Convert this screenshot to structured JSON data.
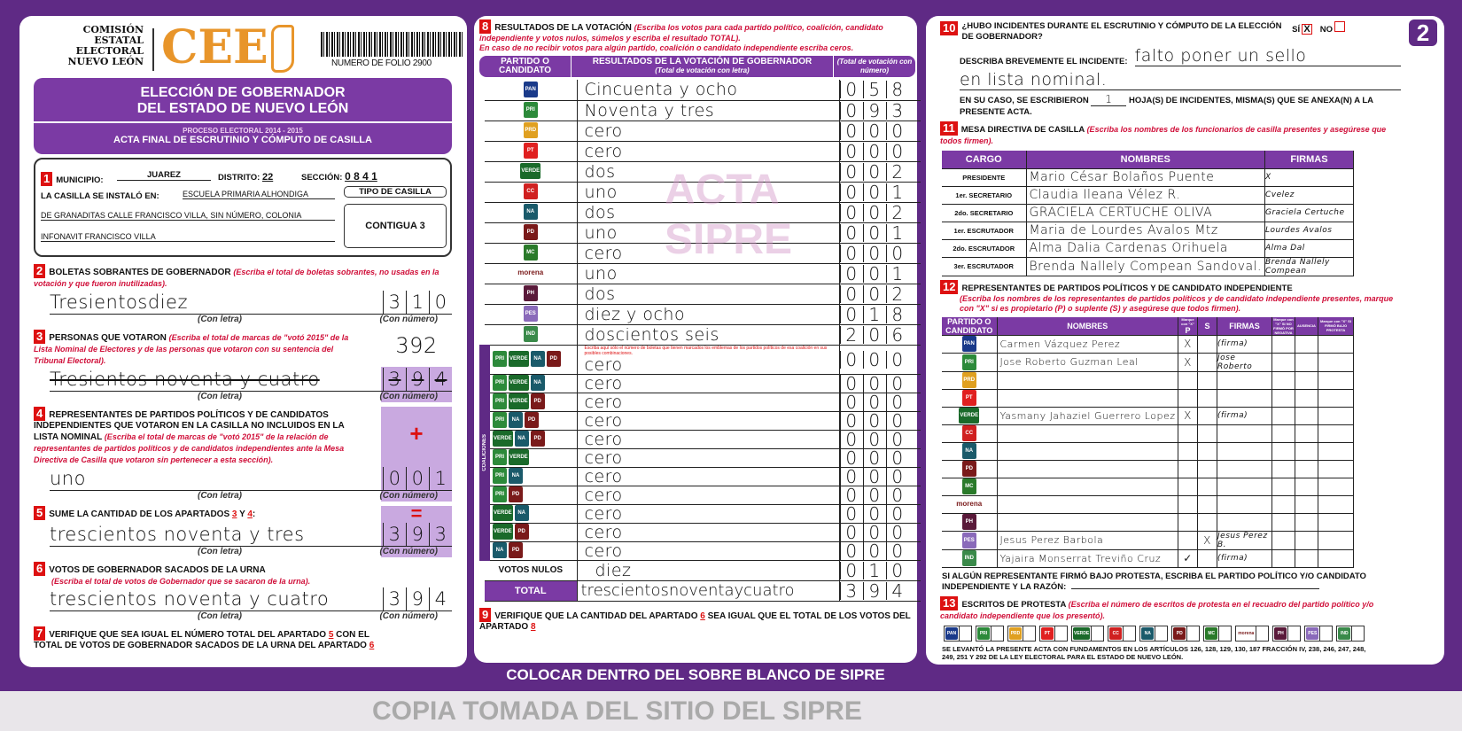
{
  "header": {
    "org_lines": [
      "COMISIÓN",
      "ESTATAL",
      "ELECTORAL",
      "NUEVO LEÓN"
    ],
    "logo_text": "CEE",
    "folio": "NUMERO DE FOLIO 2900",
    "title1": "ELECCIÓN DE GOBERNADOR",
    "title2": "DEL ESTADO DE NUEVO LEÓN",
    "proceso": "PROCESO ELECTORAL 2014 - 2015",
    "acta": "ACTA FINAL DE ESCRUTINIO Y CÓMPUTO DE CASILLA"
  },
  "s1": {
    "n": "1",
    "municipio_label": "MUNICIPIO:",
    "municipio": "JUAREZ",
    "distrito_label": "DISTRITO:",
    "distrito": "22",
    "seccion_label": "SECCIÓN:",
    "seccion": "0 8 4 1",
    "instalo_label": "LA CASILLA SE INSTALÓ EN:",
    "addr1": "ESCUELA PRIMARIA ALHONDIGA",
    "addr2": "DE GRANADITAS CALLE FRANCISCO VILLA, SIN NÚMERO, COLONIA",
    "addr3": "INFONAVIT FRANCISCO VILLA",
    "tipo_label": "TIPO DE CASILLA",
    "tipo": "CONTIGUA 3"
  },
  "labels": {
    "con_letra": "(Con letra)",
    "con_numero": "(Con número)",
    "plus": "+",
    "equals": "="
  },
  "s2": {
    "n": "2",
    "title": "BOLETAS SOBRANTES DE GOBERNADOR",
    "hint": "(Escriba el total de boletas sobrantes, no usadas en la votación y que fueron inutilizadas).",
    "letra": "Tresientosdiez",
    "numero": [
      "3",
      "1",
      "0"
    ]
  },
  "s3": {
    "n": "3",
    "title": "PERSONAS QUE VOTARON",
    "hint": "(Escriba el total de marcas de \"votó 2015\" de la Lista Nominal de Electores y de las personas que votaron con su sentencia del Tribunal Electoral).",
    "letra": "Tresientos noventa y cuatro",
    "numero_corrected": "392",
    "numero": [
      "3",
      "9",
      "4"
    ]
  },
  "s4": {
    "n": "4",
    "title": "REPRESENTANTES DE PARTIDOS POLÍTICOS Y DE CANDIDATOS INDEPENDIENTES QUE VOTARON EN LA CASILLA NO INCLUIDOS EN LA LISTA NOMINAL",
    "hint": "(Escriba el total de marcas de \"votó 2015\" de la relación de representantes de partidos políticos y de candidatos independientes ante la Mesa Directiva de Casilla que votaron sin pertenecer a esta sección).",
    "letra": "uno",
    "numero": [
      "0",
      "0",
      "1"
    ]
  },
  "s5": {
    "n": "5",
    "title": "SUME LA CANTIDAD DE LOS APARTADOS",
    "a": "3",
    "y": "Y",
    "b": "4",
    "colon": ":",
    "letra": "trescientos noventa y tres",
    "numero": [
      "3",
      "9",
      "3"
    ]
  },
  "s6": {
    "n": "6",
    "title": "VOTOS DE GOBERNADOR SACADOS DE LA URNA",
    "hint": "(Escriba el total de votos de Gobernador que se sacaron de la urna).",
    "letra": "trescientos noventa y cuatro",
    "numero": [
      "3",
      "9",
      "4"
    ]
  },
  "s7": {
    "n": "7",
    "text1": "VERIFIQUE QUE SEA IGUAL EL NÚMERO TOTAL DEL APARTADO",
    "ref1": "5",
    "text2": "CON EL TOTAL DE VOTOS DE GOBERNADOR SACADOS DE LA URNA DEL APARTADO",
    "ref2": "6"
  },
  "s8": {
    "n": "8",
    "title": "RESULTADOS DE LA VOTACIÓN",
    "hint1": "(Escriba los votos para cada partido político, coalición, candidato independiente y votos nulos, súmelos y escriba el resultado TOTAL).",
    "hint2": "En caso de no recibir votos para algún partido, coalición o candidato independiente escriba ceros.",
    "col1": "PARTIDO O CANDIDATO",
    "col2": "RESULTADOS DE LA VOTACIÓN DE GOBERNADOR",
    "col2_sub": "(Total de votación con letra)",
    "col3": "(Total de votación con número)",
    "coalition_hint": "Escriba aquí sólo el número de boletas que tienen marcados los emblemas de los partidos políticos de esa coalición en sus posibles combinaciones.",
    "coalition_label": "COALICIONES",
    "parties": [
      {
        "logo": "PAN",
        "color": "#1a3a8a",
        "letra": "Cincuenta y ocho",
        "numero": "058"
      },
      {
        "logo": "PRI",
        "color": "#2c8a3a",
        "letra": "Noventa y tres",
        "numero": "093"
      },
      {
        "logo": "PRD",
        "color": "#e0a020",
        "letra": "cero",
        "numero": "000"
      },
      {
        "logo": "PT",
        "color": "#e02020",
        "letra": "cero",
        "numero": "000"
      },
      {
        "logo": "VERDE",
        "color": "#1a6a2a",
        "letra": "dos",
        "numero": "002"
      },
      {
        "logo": "CC",
        "color": "#d02020",
        "letra": "uno",
        "numero": "001"
      },
      {
        "logo": "NA",
        "color": "#1a5a6a",
        "letra": "dos",
        "numero": "002"
      },
      {
        "logo": "PD",
        "color": "#7a1a1a",
        "letra": "uno",
        "numero": "001"
      },
      {
        "logo": "MC",
        "color": "#2a7a2a",
        "letra": "cero",
        "numero": "000"
      },
      {
        "logo": "morena",
        "color": "#ffffff",
        "letra": "uno",
        "numero": "001"
      },
      {
        "logo": "PH",
        "color": "#5a1a3a",
        "letra": "dos",
        "numero": "002"
      },
      {
        "logo": "PES",
        "color": "#8a6aba",
        "letra": "diez y ocho",
        "numero": "018"
      },
      {
        "logo": "IND",
        "color": "#3a8a4a",
        "letra": "doscientos seis",
        "numero": "206"
      }
    ],
    "coalitions": [
      {
        "logos": [
          "PRI",
          "VERDE",
          "NA",
          "PD"
        ],
        "letra": "cero",
        "numero": "000"
      },
      {
        "logos": [
          "PRI",
          "VERDE",
          "NA"
        ],
        "letra": "cero",
        "numero": "000"
      },
      {
        "logos": [
          "PRI",
          "VERDE",
          "PD"
        ],
        "letra": "cero",
        "numero": "000"
      },
      {
        "logos": [
          "PRI",
          "NA",
          "PD"
        ],
        "letra": "cero",
        "numero": "000"
      },
      {
        "logos": [
          "VERDE",
          "NA",
          "PD"
        ],
        "letra": "cero",
        "numero": "000"
      },
      {
        "logos": [
          "PRI",
          "VERDE"
        ],
        "letra": "cero",
        "numero": "000"
      },
      {
        "logos": [
          "PRI",
          "NA"
        ],
        "letra": "cero",
        "numero": "000"
      },
      {
        "logos": [
          "PRI",
          "PD"
        ],
        "letra": "cero",
        "numero": "000"
      },
      {
        "logos": [
          "VERDE",
          "NA"
        ],
        "letra": "cero",
        "numero": "000"
      },
      {
        "logos": [
          "VERDE",
          "PD"
        ],
        "letra": "cero",
        "numero": "000"
      },
      {
        "logos": [
          "NA",
          "PD"
        ],
        "letra": "cero",
        "numero": "000"
      }
    ],
    "nulos_label": "VOTOS NULOS",
    "nulos_letra": "diez",
    "nulos_numero": "010",
    "total_label": "TOTAL",
    "total_letra": "trescientosnoventaycuatro",
    "total_numero": "394"
  },
  "s9": {
    "n": "9",
    "text1": "VERIFIQUE QUE LA CANTIDAD DEL APARTADO",
    "ref1": "6",
    "text2": "SEA IGUAL QUE EL TOTAL DE LOS VOTOS DEL APARTADO",
    "ref2": "8"
  },
  "footer_banner": "COLOCAR DENTRO DEL SOBRE BLANCO DE SIPRE",
  "watermark_acta": "ACTA",
  "watermark_sipre": "SIPRE",
  "watermark_copy": "COPIA TOMADA DEL SITIO DEL SIPRE",
  "page_badge": "2",
  "s10": {
    "n": "10",
    "q": "¿HUBO INCIDENTES DURANTE EL ESCRUTINIO Y CÓMPUTO DE LA ELECCIÓN DE GOBERNADOR?",
    "si": "SÍ",
    "no": "NO",
    "si_mark": "X",
    "describe_label": "DESCRIBA BREVEMENTE EL INCIDENTE:",
    "describe1": "falto poner un sello",
    "describe2": "en lista nominal.",
    "caso1": "EN SU CASO, SE ESCRIBIERON",
    "hojas": "1",
    "con_numero": "(Con número)",
    "caso2": "HOJA(S) DE INCIDENTES, MISMA(S) QUE SE ANEXA(N) A LA PRESENTE ACTA."
  },
  "s11": {
    "n": "11",
    "title": "MESA DIRECTIVA DE CASILLA",
    "hint": "(Escriba los nombres de los funcionarios de casilla presentes y asegúrese que todos firmen).",
    "cols": [
      "CARGO",
      "NOMBRES",
      "FIRMAS"
    ],
    "rows": [
      {
        "cargo": "PRESIDENTE",
        "nombre": "Mario César Bolaños Puente",
        "firma": "X"
      },
      {
        "cargo": "1er. SECRETARIO",
        "nombre": "Claudia Ileana Vélez R.",
        "firma": "Cvelez"
      },
      {
        "cargo": "2do. SECRETARIO",
        "nombre": "GRACIELA CERTUCHE OLIVA",
        "firma": "Graciela Certuche"
      },
      {
        "cargo": "1er. ESCRUTADOR",
        "nombre": "Maria de Lourdes Avalos Mtz",
        "firma": "Lourdes Avalos"
      },
      {
        "cargo": "2do. ESCRUTADOR",
        "nombre": "Alma Dalia Cardenas Orihuela",
        "firma": "Alma Dal"
      },
      {
        "cargo": "3er. ESCRUTADOR",
        "nombre": "Brenda Nallely Compean Sandoval.",
        "firma": "Brenda Nallely Compean"
      }
    ]
  },
  "s12": {
    "n": "12",
    "title": "REPRESENTANTES DE PARTIDOS POLÍTICOS Y DE CANDIDATO INDEPENDIENTE",
    "hint": "(Escriba los nombres de los representantes de partidos políticos y de candidato independiente presentes, marque con \"X\" si es propietario (P) o suplente (S) y asegúrese que todos firmen).",
    "cols": {
      "partido": "PARTIDO O CANDIDATO",
      "nombres": "NOMBRES",
      "marque": "Marque con \"X\"",
      "p": "P",
      "s": "S",
      "firmas": "FIRMAS",
      "no_firmo": "Marque con \"X\" SI NO FIRMÓ POR",
      "negativa": "NEGATIVA",
      "ausencia": "AUSENCIA",
      "protesta": "Marque con \"X\" SI FIRMÓ BAJO PROTESTA"
    },
    "rows": [
      {
        "logo": "PAN",
        "nombre": "Carmen Vázquez Perez",
        "p": "X",
        "s": "",
        "firma": "(firma)"
      },
      {
        "logo": "PRI",
        "nombre": "Jose Roberto Guzman Leal",
        "p": "X",
        "s": "",
        "firma": "Jose Roberto"
      },
      {
        "logo": "PRD",
        "nombre": "",
        "p": "",
        "s": "",
        "firma": ""
      },
      {
        "logo": "PT",
        "nombre": "",
        "p": "",
        "s": "",
        "firma": ""
      },
      {
        "logo": "VERDE",
        "nombre": "Yasmany Jahaziel Guerrero Lopez",
        "p": "X",
        "s": "",
        "firma": "(firma)"
      },
      {
        "logo": "CC",
        "nombre": "",
        "p": "",
        "s": "",
        "firma": ""
      },
      {
        "logo": "NA",
        "nombre": "",
        "p": "",
        "s": "",
        "firma": ""
      },
      {
        "logo": "PD",
        "nombre": "",
        "p": "",
        "s": "",
        "firma": ""
      },
      {
        "logo": "MC",
        "nombre": "",
        "p": "",
        "s": "",
        "firma": ""
      },
      {
        "logo": "morena",
        "nombre": "",
        "p": "",
        "s": "",
        "firma": ""
      },
      {
        "logo": "PH",
        "nombre": "",
        "p": "",
        "s": "",
        "firma": ""
      },
      {
        "logo": "PES",
        "nombre": "Jesus Perez Barbola",
        "p": "",
        "s": "X",
        "firma": "Jesus Perez B."
      },
      {
        "logo": "IND",
        "nombre": "Yajaira Monserrat Treviño Cruz",
        "p": "✓",
        "s": "",
        "firma": "(firma)"
      }
    ],
    "protesta_text": "SI ALGÚN REPRESENTANTE FIRMÓ BAJO PROTESTA, ESCRIBA EL PARTIDO POLÍTICO Y/O CANDIDATO INDEPENDIENTE Y LA RAZÓN:"
  },
  "s13": {
    "n": "13",
    "title": "ESCRITOS DE PROTESTA",
    "hint": "(Escriba el número de escritos de protesta en el recuadro del partido político y/o candidato independiente que los presentó).",
    "boxes": [
      "PAN",
      "PRI",
      "PRD",
      "PT",
      "VERDE",
      "CC",
      "NA",
      "PD",
      "MC",
      "morena",
      "PH",
      "PES",
      "IND"
    ]
  },
  "legal": "SE LEVANTÓ LA PRESENTE ACTA CON FUNDAMENTOS EN LOS ARTÍCULOS 126, 128, 129, 130, 187 FRACCIÓN IV, 238, 246, 247, 248, 249, 251 Y 292 DE LA LEY ELECTORAL PARA EL ESTADO DE NUEVO LEÓN."
}
